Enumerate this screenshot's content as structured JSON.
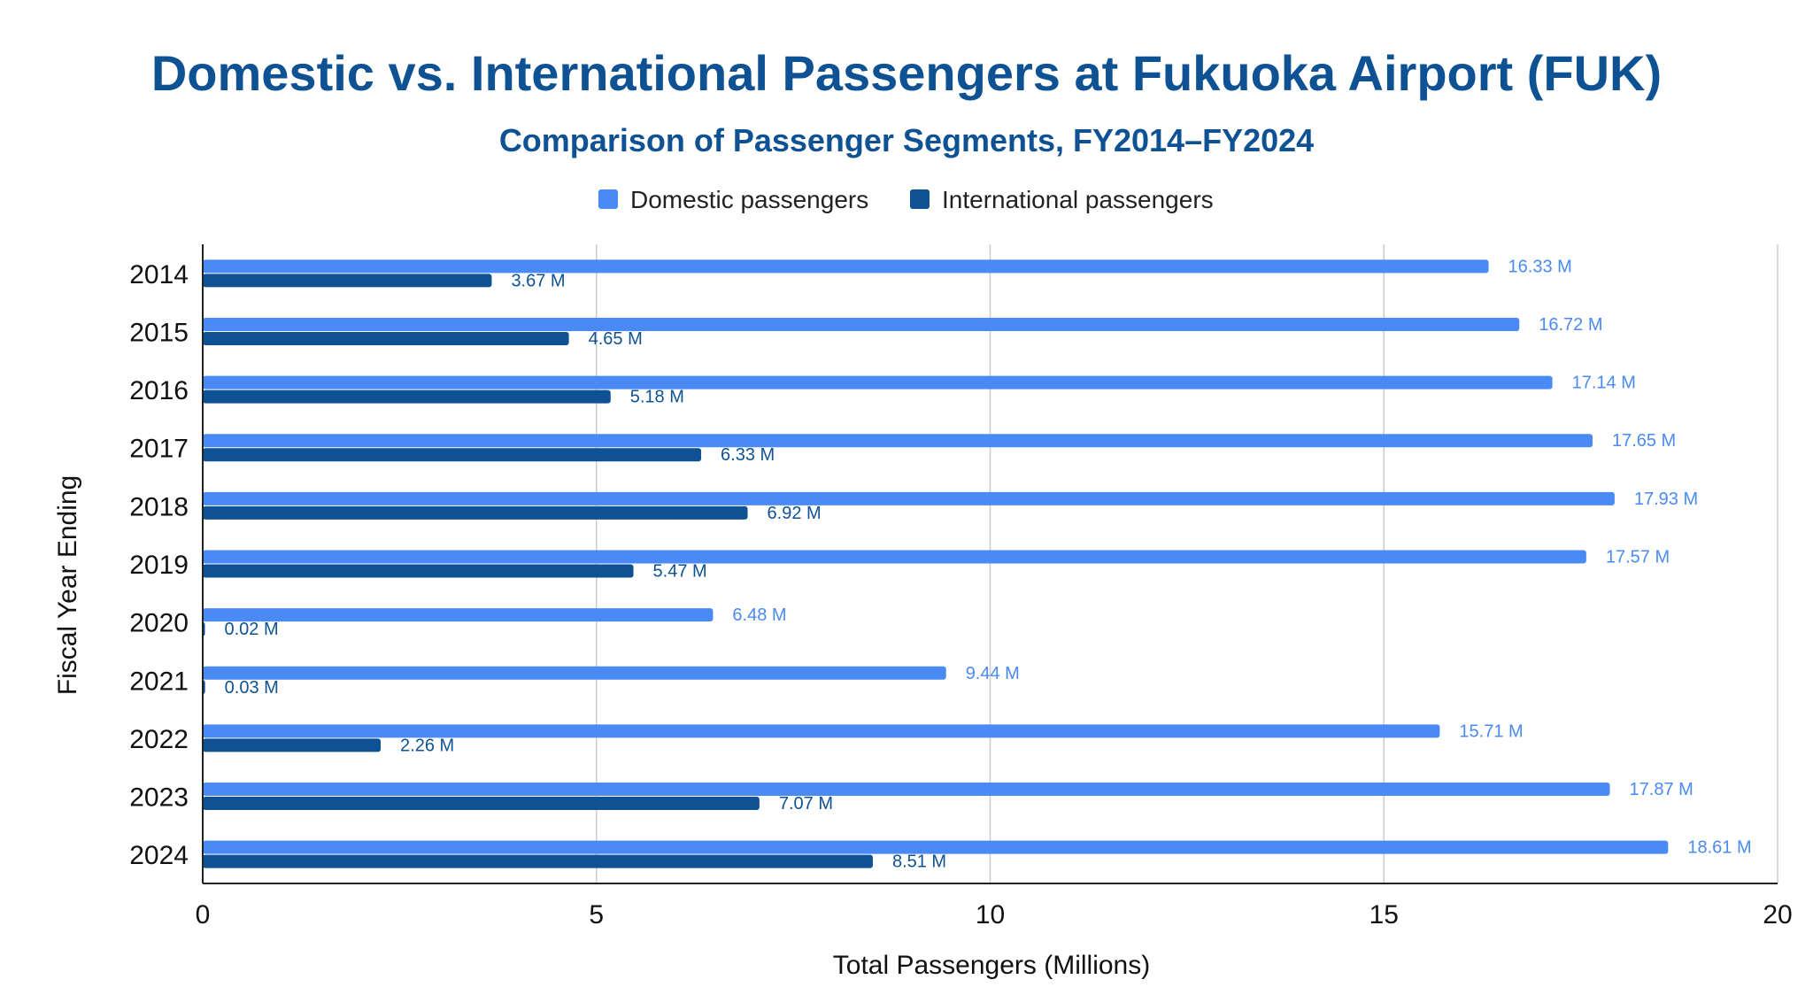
{
  "chart_data": {
    "type": "bar",
    "orientation": "horizontal",
    "title": "Domestic vs. International Passengers at Fukuoka Airport (FUK)",
    "subtitle": "Comparison of Passenger Segments, FY2014–FY2024",
    "xlabel": "Total Passengers (Millions)",
    "ylabel": "Fiscal Year Ending",
    "xlim": [
      0,
      20
    ],
    "xticks": [
      "0",
      "5",
      "10",
      "15",
      "20"
    ],
    "grid": true,
    "legend_position": "top",
    "categories": [
      "2014",
      "2015",
      "2016",
      "2017",
      "2018",
      "2019",
      "2020",
      "2021",
      "2022",
      "2023",
      "2024"
    ],
    "series": [
      {
        "name": "Domestic passengers",
        "color": "#4a8af4",
        "values": [
          16.33,
          16.72,
          17.14,
          17.65,
          17.93,
          17.57,
          6.48,
          9.44,
          15.71,
          17.87,
          18.61
        ],
        "labels": [
          "16.33 M",
          "16.72 M",
          "17.14 M",
          "17.65 M",
          "17.93 M",
          "17.57 M",
          "6.48 M",
          "9.44 M",
          "15.71 M",
          "17.87 M",
          "18.61 M"
        ]
      },
      {
        "name": "International passengers",
        "color": "#0f5294",
        "values": [
          3.67,
          4.65,
          5.18,
          6.33,
          6.92,
          5.47,
          0.02,
          0.03,
          2.26,
          7.07,
          8.51
        ],
        "labels": [
          "3.67 M",
          "4.65 M",
          "5.18 M",
          "6.33 M",
          "6.92 M",
          "5.47 M",
          "0.02 M",
          "0.03 M",
          "2.26 M",
          "7.07 M",
          "8.51 M"
        ]
      }
    ]
  }
}
